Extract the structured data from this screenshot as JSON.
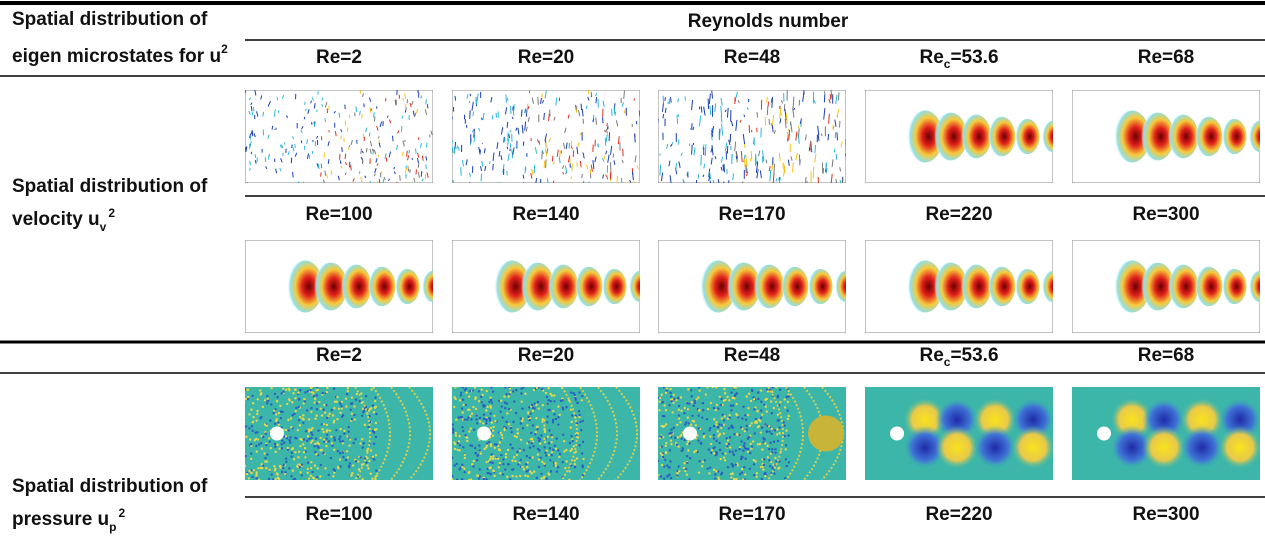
{
  "header": {
    "row_label": [
      "Spatial distribution of",
      "eigen microstates for u"
    ],
    "row_label_sup": "2",
    "column_title": "Reynolds number"
  },
  "sections": [
    {
      "label": [
        "Spatial distribution of",
        "velocity u"
      ],
      "sub": "v",
      "sup": "2",
      "rows": [
        [
          "Re=2",
          "Re=20",
          "Re=48",
          {
            "text": "Re",
            "sub": "c",
            "rest": "=53.6"
          },
          "Re=68"
        ],
        [
          "Re=100",
          "Re=140",
          "Re=170",
          "Re=220",
          "Re=300"
        ]
      ]
    },
    {
      "label": [
        "Spatial distribution of",
        "pressure u"
      ],
      "sub": "p",
      "sup": "2",
      "rows": [
        [
          "Re=2",
          "Re=20",
          "Re=48",
          {
            "text": "Re",
            "sub": "c",
            "rest": "=53.6"
          },
          "Re=68"
        ],
        [
          "Re=100",
          "Re=140",
          "Re=170",
          "Re=220",
          "Re=300"
        ]
      ]
    }
  ]
}
